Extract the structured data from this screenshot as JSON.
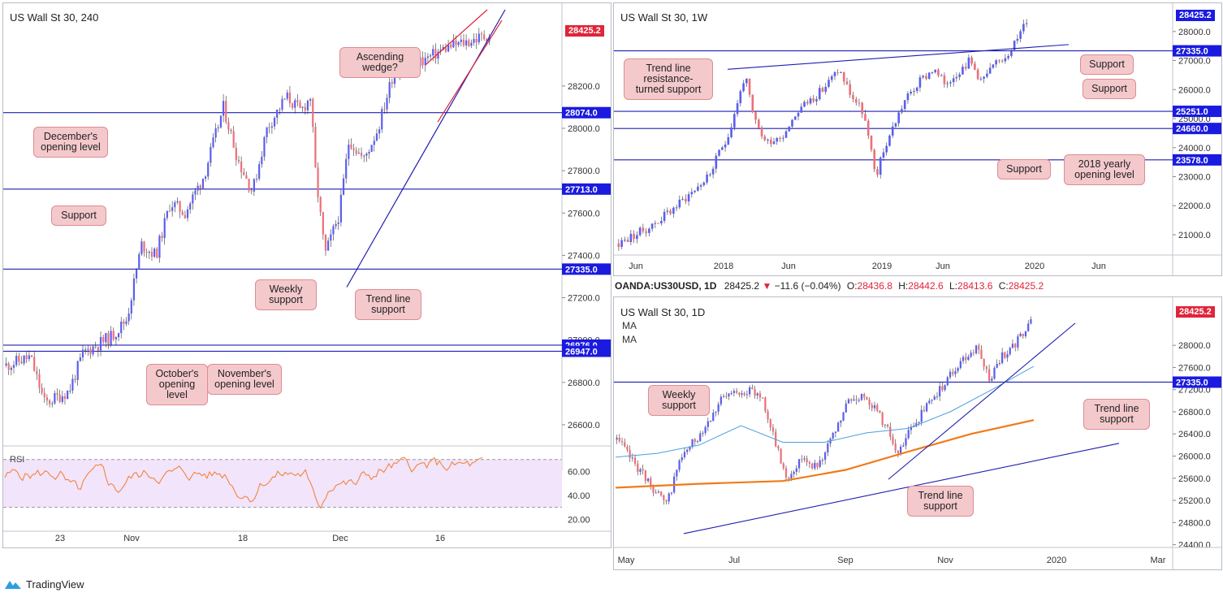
{
  "brand": {
    "name": "TradingView",
    "logo_icon": "tradingview-cloud-icon"
  },
  "colors": {
    "support_line": "#1f1fb0",
    "wedge": "#e0243a",
    "bull": "#5b5ef0",
    "bear": "#ef6f78",
    "label_red": "#e0243a",
    "label_blue": "#1a1ae0",
    "rsi_line": "#f57c2a",
    "ma_orange": "#f07a18",
    "ma_blue": "#4aa0e0",
    "callout_bg": "#f4c9cc"
  },
  "chart_data": [
    {
      "id": "h4",
      "type": "candlestick",
      "title": "US Wall St 30, 240",
      "ylim": [
        26500,
        28560
      ],
      "y_ticks": [
        26600,
        26800,
        27000,
        27200,
        27400,
        27600,
        27800,
        28000,
        28200
      ],
      "x_ticks": [
        "23",
        "Nov",
        "18",
        "Dec",
        "16"
      ],
      "levels": [
        {
          "label": "28074.0",
          "value": 28074
        },
        {
          "label": "27713.0",
          "value": 27713
        },
        {
          "label": "27335.0",
          "value": 27335
        },
        {
          "label": "26976.0",
          "value": 26976
        },
        {
          "label": "26947.0",
          "value": 26947
        }
      ],
      "last_price": "28425.2",
      "annotations": [
        "Ascending wedge?",
        "December's opening level",
        "Support",
        "Weekly support",
        "Trend line support",
        "October's opening level",
        "November's opening level"
      ],
      "rsi": {
        "label": "RSI",
        "ylim": [
          10,
          80
        ],
        "y_ticks": [
          20,
          40,
          60
        ],
        "band": [
          30,
          70
        ]
      }
    },
    {
      "id": "w1",
      "type": "candlestick",
      "title": "US Wall St 30, 1W",
      "ylim": [
        20300,
        28750
      ],
      "y_ticks": [
        21000,
        22000,
        23000,
        24000,
        25000,
        26000,
        27000,
        28000
      ],
      "x_ticks": [
        "Jun",
        "2018",
        "Jun",
        "2019",
        "Jun",
        "2020",
        "Jun"
      ],
      "levels": [
        {
          "label": "27335.0",
          "value": 27335
        },
        {
          "label": "25251.0",
          "value": 25251
        },
        {
          "label": "24660.0",
          "value": 24660
        },
        {
          "label": "23578.0",
          "value": 23578
        }
      ],
      "last_price": "28425.2",
      "annotations": [
        "Trend line resistance- turned support",
        "Support",
        "Support",
        "Support",
        "2018 yearly opening level"
      ]
    },
    {
      "id": "d1",
      "type": "candlestick",
      "title": "US Wall St 30, 1D",
      "ylim": [
        24350,
        28750
      ],
      "y_ticks": [
        24400,
        24800,
        25200,
        25600,
        26000,
        26400,
        26800,
        27200,
        27600,
        28000
      ],
      "x_ticks": [
        "May",
        "Jul",
        "Sep",
        "Nov",
        "2020",
        "Mar"
      ],
      "levels": [
        {
          "label": "27335.0",
          "value": 27335
        }
      ],
      "last_price": "28425.2",
      "ma_labels": [
        "MA",
        "MA"
      ],
      "annotations": [
        "Weekly support",
        "Trend line support",
        "Trend line support"
      ]
    }
  ],
  "ohlc_header": {
    "symbol": "OANDA:US30USD, 1D",
    "price": "28425.2",
    "change": "−11.6 (−0.04%)",
    "o_label": "O:",
    "o": "28436.8",
    "h_label": "H:",
    "h": "28442.6",
    "l_label": "L:",
    "l": "28413.6",
    "c_label": "C:",
    "c": "28425.2"
  }
}
